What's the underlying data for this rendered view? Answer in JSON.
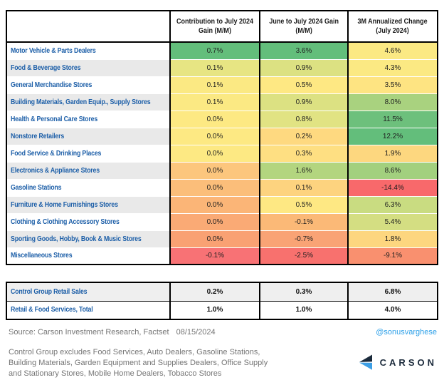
{
  "table": {
    "headers": [
      "Contribution to July 2024\nGain (M/M)",
      "June to July 2024 Gain\n(M/M)",
      "3M Annualized Change\n(July 2024)"
    ],
    "rows": [
      {
        "label": "Motor Vehicle & Parts Dealers",
        "cells": [
          {
            "v": "0.7%",
            "bg": "#63BE7B"
          },
          {
            "v": "3.6%",
            "bg": "#63BE7B"
          },
          {
            "v": "4.6%",
            "bg": "#FBE983"
          }
        ]
      },
      {
        "label": "Food & Beverage Stores",
        "cells": [
          {
            "v": "0.1%",
            "bg": "#E7E583"
          },
          {
            "v": "0.9%",
            "bg": "#DCE182"
          },
          {
            "v": "4.3%",
            "bg": "#FBE983"
          }
        ]
      },
      {
        "label": "General Merchandise Stores",
        "cells": [
          {
            "v": "0.1%",
            "bg": "#FBE983"
          },
          {
            "v": "0.5%",
            "bg": "#FEE883"
          },
          {
            "v": "3.5%",
            "bg": "#FEE482"
          }
        ]
      },
      {
        "label": "Building Materials, Garden Equip., Supply Stores",
        "cells": [
          {
            "v": "0.1%",
            "bg": "#FBE983"
          },
          {
            "v": "0.9%",
            "bg": "#DCE182"
          },
          {
            "v": "8.0%",
            "bg": "#A9D27F"
          }
        ]
      },
      {
        "label": "Health & Personal Care Stores",
        "cells": [
          {
            "v": "0.0%",
            "bg": "#FDE983"
          },
          {
            "v": "0.8%",
            "bg": "#E1E383"
          },
          {
            "v": "11.5%",
            "bg": "#6DC07C"
          }
        ]
      },
      {
        "label": "Nonstore Retailers",
        "cells": [
          {
            "v": "0.0%",
            "bg": "#FDE983"
          },
          {
            "v": "0.2%",
            "bg": "#FED980"
          },
          {
            "v": "12.2%",
            "bg": "#63BE7B"
          }
        ]
      },
      {
        "label": "Food Service & Drinking Places",
        "cells": [
          {
            "v": "0.0%",
            "bg": "#FDE983"
          },
          {
            "v": "0.3%",
            "bg": "#FEDF82"
          },
          {
            "v": "1.9%",
            "bg": "#FDD77F"
          }
        ]
      },
      {
        "label": "Electronics & Appliance Stores",
        "cells": [
          {
            "v": "0.0%",
            "bg": "#FCC67D"
          },
          {
            "v": "1.6%",
            "bg": "#B3D57F"
          },
          {
            "v": "8.6%",
            "bg": "#A2D07E"
          }
        ]
      },
      {
        "label": "Gasoline Stations",
        "cells": [
          {
            "v": "0.0%",
            "bg": "#FBBE7A"
          },
          {
            "v": "0.1%",
            "bg": "#FDD37F"
          },
          {
            "v": "-14.4%",
            "bg": "#F8696B"
          }
        ]
      },
      {
        "label": "Furniture & Home Furnishings Stores",
        "cells": [
          {
            "v": "0.0%",
            "bg": "#FBB577"
          },
          {
            "v": "0.5%",
            "bg": "#FEE883"
          },
          {
            "v": "6.3%",
            "bg": "#C9DC81"
          }
        ]
      },
      {
        "label": "Clothing & Clothing Accessory Stores",
        "cells": [
          {
            "v": "0.0%",
            "bg": "#FAAA75"
          },
          {
            "v": "-0.1%",
            "bg": "#FBB977"
          },
          {
            "v": "5.4%",
            "bg": "#D4DE82"
          }
        ]
      },
      {
        "label": "Sporting Goods, Hobby, Book & Music Stores",
        "cells": [
          {
            "v": "0.0%",
            "bg": "#F9A173"
          },
          {
            "v": "-0.7%",
            "bg": "#F9A375"
          },
          {
            "v": "1.8%",
            "bg": "#FDD67F"
          }
        ]
      },
      {
        "label": "Miscellaneous Stores",
        "cells": [
          {
            "v": "-0.1%",
            "bg": "#F87275"
          },
          {
            "v": "-2.5%",
            "bg": "#F8716E"
          },
          {
            "v": "-9.1%",
            "bg": "#F9906F"
          }
        ]
      }
    ]
  },
  "summary": {
    "rows": [
      {
        "label": "Control Group Retail Sales",
        "values": [
          "0.2%",
          "0.3%",
          "6.8%"
        ]
      },
      {
        "label": "Retail & Food Services, Total",
        "values": [
          "1.0%",
          "1.0%",
          "4.0%"
        ]
      }
    ]
  },
  "footer": {
    "source_label": "Source: Carson Investment Research, Factset",
    "source_date": "08/15/2024",
    "handle": "@sonusvarghese",
    "note_lines": [
      "Control Group excludes Food Services, Auto Dealers, Gasoline Stations,",
      "Building Materials, Garden Equipment and Supplies Dealers, Office Supply",
      "and Stationary Stores, Mobile Home Dealers, Tobacco Stores"
    ],
    "logo_text": "CARSON"
  },
  "colors": {
    "label_blue": "#1d5fa8",
    "handle_blue": "#2b9fe8",
    "note_gray": "#757575",
    "logo_navy": "#1b2a3b",
    "logo_light_blue": "#3d9fe5",
    "scale_green": "#63BE7B",
    "scale_yellow": "#FFE984",
    "scale_red": "#F8696B",
    "alt_row_gray": "#e9e9e9",
    "summary_row_gray": "#efefef"
  },
  "chart_data": {
    "type": "heatmap",
    "title": "",
    "columns": [
      "Contribution to July 2024 Gain (M/M)",
      "June to July 2024 Gain (M/M)",
      "3M Annualized Change (July 2024)"
    ],
    "categories": [
      "Motor Vehicle & Parts Dealers",
      "Food & Beverage Stores",
      "General Merchandise Stores",
      "Building Materials, Garden Equip., Supply Stores",
      "Health & Personal Care Stores",
      "Nonstore Retailers",
      "Food Service & Drinking Places",
      "Electronics & Appliance Stores",
      "Gasoline Stations",
      "Furniture & Home Furnishings Stores",
      "Clothing & Clothing Accessory Stores",
      "Sporting Goods, Hobby, Book & Music Stores",
      "Miscellaneous Stores"
    ],
    "series": [
      {
        "name": "Contribution to July 2024 Gain (M/M)",
        "values": [
          0.7,
          0.1,
          0.1,
          0.1,
          0.0,
          0.0,
          0.0,
          0.0,
          0.0,
          0.0,
          0.0,
          0.0,
          -0.1
        ]
      },
      {
        "name": "June to July 2024 Gain (M/M)",
        "values": [
          3.6,
          0.9,
          0.5,
          0.9,
          0.8,
          0.2,
          0.3,
          1.6,
          0.1,
          0.5,
          -0.1,
          -0.7,
          -2.5
        ]
      },
      {
        "name": "3M Annualized Change (July 2024)",
        "values": [
          4.6,
          4.3,
          3.5,
          8.0,
          11.5,
          12.2,
          1.9,
          8.6,
          -14.4,
          6.3,
          5.4,
          1.8,
          -9.1
        ]
      }
    ],
    "summary_rows": [
      {
        "name": "Control Group Retail Sales",
        "values": [
          0.2,
          0.3,
          6.8
        ]
      },
      {
        "name": "Retail & Food Services, Total",
        "values": [
          1.0,
          1.0,
          4.0
        ]
      }
    ],
    "unit": "%",
    "color_scale": "red-yellow-green"
  }
}
